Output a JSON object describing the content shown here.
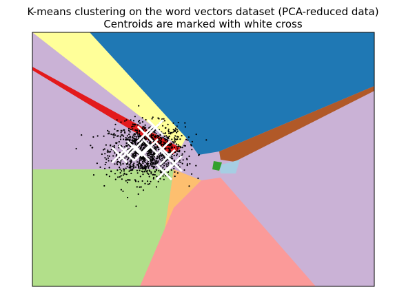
{
  "chart_data": {
    "type": "scatter",
    "title_lines": [
      "K-means clustering on the word vectors dataset (PCA-reduced data)",
      "Centroids are marked with white cross"
    ],
    "xlabel": "",
    "ylabel": "",
    "x_ticks": [],
    "y_ticks": [],
    "grid": false,
    "legend": "none",
    "marker_colors": {
      "points": "#000000",
      "centroids": "#ffffff"
    },
    "xlim": [
      -0.5,
      1.5
    ],
    "ylim": [
      -0.6,
      0.6
    ],
    "regions": [
      {
        "name": "blue",
        "color": "#1f78b4"
      },
      {
        "name": "yellow",
        "color": "#ffff99"
      },
      {
        "name": "red",
        "color": "#e31a1c"
      },
      {
        "name": "lilac-left",
        "color": "#cab2d6"
      },
      {
        "name": "green",
        "color": "#b2df8a"
      },
      {
        "name": "orange",
        "color": "#fdbf6f"
      },
      {
        "name": "pink",
        "color": "#fb9a99"
      },
      {
        "name": "lilac-right",
        "color": "#cab2d6"
      },
      {
        "name": "brown",
        "color": "#b15928"
      },
      {
        "name": "light-blue",
        "color": "#a6cee3"
      },
      {
        "name": "dark-green",
        "color": "#33a02c"
      }
    ],
    "centroids": [
      {
        "x": 0.01,
        "y": 0.02
      },
      {
        "x": 0.05,
        "y": 0.03
      },
      {
        "x": 0.1,
        "y": 0.05
      },
      {
        "x": 0.14,
        "y": 0.03
      },
      {
        "x": 0.19,
        "y": 0.06
      },
      {
        "x": 0.16,
        "y": 0.12
      },
      {
        "x": 0.22,
        "y": 0.15
      },
      {
        "x": 0.26,
        "y": 0.05
      },
      {
        "x": 0.29,
        "y": 0.01
      },
      {
        "x": 0.33,
        "y": -0.02
      },
      {
        "x": 0.27,
        "y": -0.06
      }
    ],
    "points": {
      "count": 1200,
      "center": {
        "x": 0.17,
        "y": 0.04
      },
      "spread": {
        "x": 0.11,
        "y": 0.065
      }
    }
  }
}
